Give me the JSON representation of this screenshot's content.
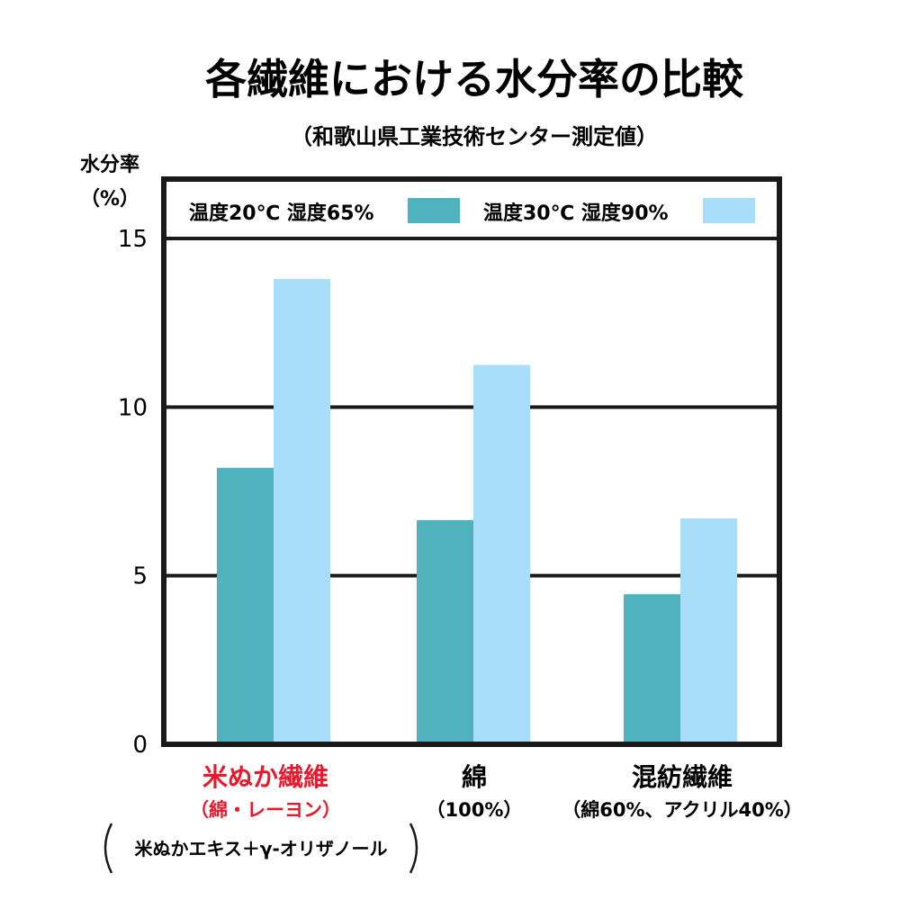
{
  "chart_data": {
    "type": "bar",
    "title": "各繊維における水分率の比較",
    "subtitle": "（和歌山県工業技術センター測定値）",
    "ylabel": "水分率",
    "yunit": "（%）",
    "ylim": [
      0,
      15
    ],
    "yticks": [
      "15",
      "10",
      "5",
      "0"
    ],
    "ytick_values": [
      15,
      10,
      5,
      0
    ],
    "grid": true,
    "legend_position": "top",
    "categories": [
      "米ぬか繊維",
      "綿",
      "混紡繊維"
    ],
    "category_sublabels": [
      "（綿・レーヨン）",
      "（100%）",
      "（綿60%、アクリル40%）"
    ],
    "category_note": "米ぬかエキス＋γ-オリザノール",
    "series": [
      {
        "name": "温度20℃ 湿度65%",
        "values": [
          8.2,
          6.65,
          4.45
        ]
      },
      {
        "name": "温度30℃ 湿度90%",
        "values": [
          13.8,
          11.25,
          6.7
        ]
      }
    ],
    "colors": {
      "series1": "#4fb2bd",
      "series2": "#a9defa",
      "highlight_label": "#e8192c",
      "axis": "#1a1a1a"
    }
  }
}
